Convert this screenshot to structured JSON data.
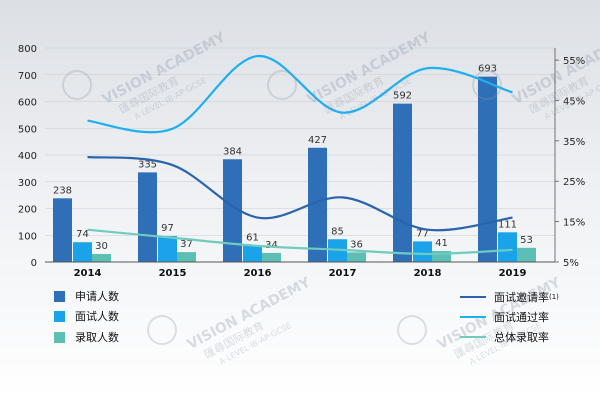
{
  "chart_data": {
    "type": "bar",
    "categories": [
      "2014",
      "2015",
      "2016",
      "2017",
      "2018",
      "2019"
    ],
    "ylim": [
      0,
      800
    ],
    "yticks": [
      0,
      100,
      200,
      300,
      400,
      500,
      600,
      700,
      800
    ],
    "y2lim": [
      5,
      58
    ],
    "y2ticks": [
      "5%",
      "15%",
      "25%",
      "35%",
      "45%",
      "55%"
    ],
    "y2tick_values": [
      5,
      15,
      25,
      35,
      45,
      55
    ],
    "series": [
      {
        "name": "申请人数",
        "kind": "bar",
        "color": "#2e6fb7",
        "values": [
          238,
          335,
          384,
          427,
          592,
          693
        ],
        "labels": [
          "238",
          "335",
          "384",
          "427",
          "592",
          "693"
        ]
      },
      {
        "name": "面试人数",
        "kind": "bar",
        "color": "#1aa3e8",
        "values": [
          74,
          97,
          61,
          85,
          77,
          111
        ],
        "labels": [
          "74",
          "97",
          "61",
          "85",
          "77",
          "111"
        ]
      },
      {
        "name": "录取人数",
        "kind": "bar",
        "color": "#5dbfb4",
        "values": [
          30,
          37,
          34,
          36,
          41,
          53
        ],
        "labels": [
          "30",
          "37",
          "34",
          "36",
          "41",
          "53"
        ]
      }
    ],
    "lines": [
      {
        "name": "面试邀请率",
        "superscript": "(1)",
        "color": "#2a64ad",
        "axis": "right",
        "values": [
          31,
          29,
          16,
          21,
          13,
          16
        ]
      },
      {
        "name": "面试通过率",
        "color": "#1cb0f0",
        "axis": "right",
        "values": [
          40,
          38,
          56,
          42,
          53,
          47
        ]
      },
      {
        "name": "总体录取率",
        "color": "#6fcbc0",
        "axis": "right",
        "values": [
          13,
          11,
          9,
          8,
          7,
          8
        ]
      }
    ]
  },
  "watermark": {
    "title": "VISION ACADEMY",
    "cn": "匯尋国际教育",
    "sub": "A·LEVEL·IB·AP·GCSE"
  }
}
